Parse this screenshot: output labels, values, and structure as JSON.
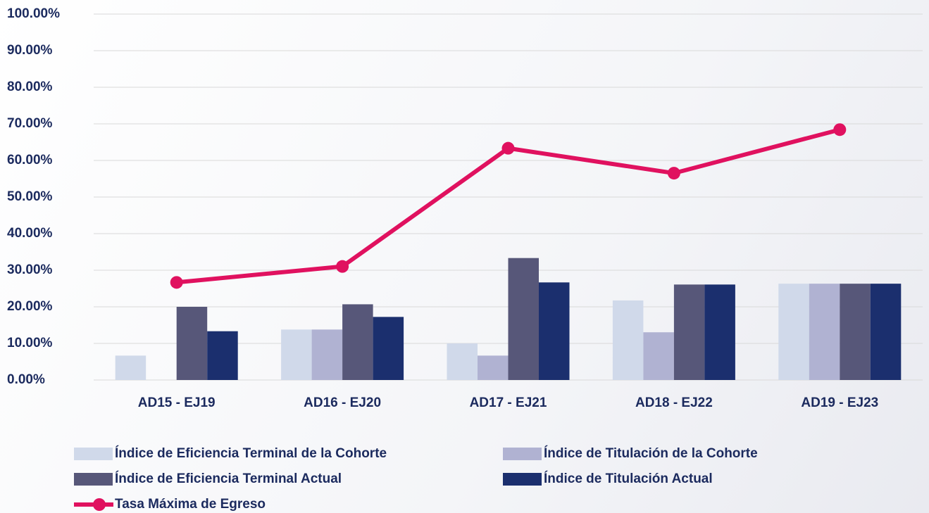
{
  "chart_data": {
    "type": "bar",
    "categories": [
      "AD15 - EJ19",
      "AD16 - EJ20",
      "AD17 - EJ21",
      "AD18 - EJ22",
      "AD19 - EJ23"
    ],
    "ylim": [
      0,
      100
    ],
    "yticks": [
      {
        "value": 0,
        "label": "0.00%"
      },
      {
        "value": 10,
        "label": "10.00%"
      },
      {
        "value": 20,
        "label": "20.00%"
      },
      {
        "value": 30,
        "label": "30.00%"
      },
      {
        "value": 40,
        "label": "40.00%"
      },
      {
        "value": 50,
        "label": "50.00%"
      },
      {
        "value": 60,
        "label": "60.00%"
      },
      {
        "value": 70,
        "label": "70.00%"
      },
      {
        "value": 80,
        "label": "80.00%"
      },
      {
        "value": 90,
        "label": "90.00%"
      },
      {
        "value": 100,
        "label": "100.00%"
      }
    ],
    "grid": true,
    "series": [
      {
        "name": "Índice de Eficiencia Terminal de la Cohorte",
        "type": "bar",
        "color": "#d0d9ea",
        "values": [
          6.67,
          13.79,
          10,
          21.74,
          26.32
        ]
      },
      {
        "name": "Índice de Titulación de la Cohorte",
        "type": "bar",
        "color": "#b0b2d2",
        "values": [
          0,
          13.79,
          6.67,
          13.04,
          26.32
        ]
      },
      {
        "name": "Índice de Eficiencia Terminal Actual",
        "type": "bar",
        "color": "#575779",
        "values": [
          20,
          20.69,
          33.33,
          26.09,
          26.32
        ]
      },
      {
        "name": "Índice de Titulación Actual",
        "type": "bar",
        "color": "#1b2f6e",
        "values": [
          13.33,
          17.24,
          26.67,
          26.09,
          26.32
        ]
      },
      {
        "name": "Tasa Máxima de Egreso",
        "type": "line",
        "color": "#e0115f",
        "values": [
          26.67,
          31.03,
          63.33,
          56.52,
          68.42
        ]
      }
    ]
  }
}
